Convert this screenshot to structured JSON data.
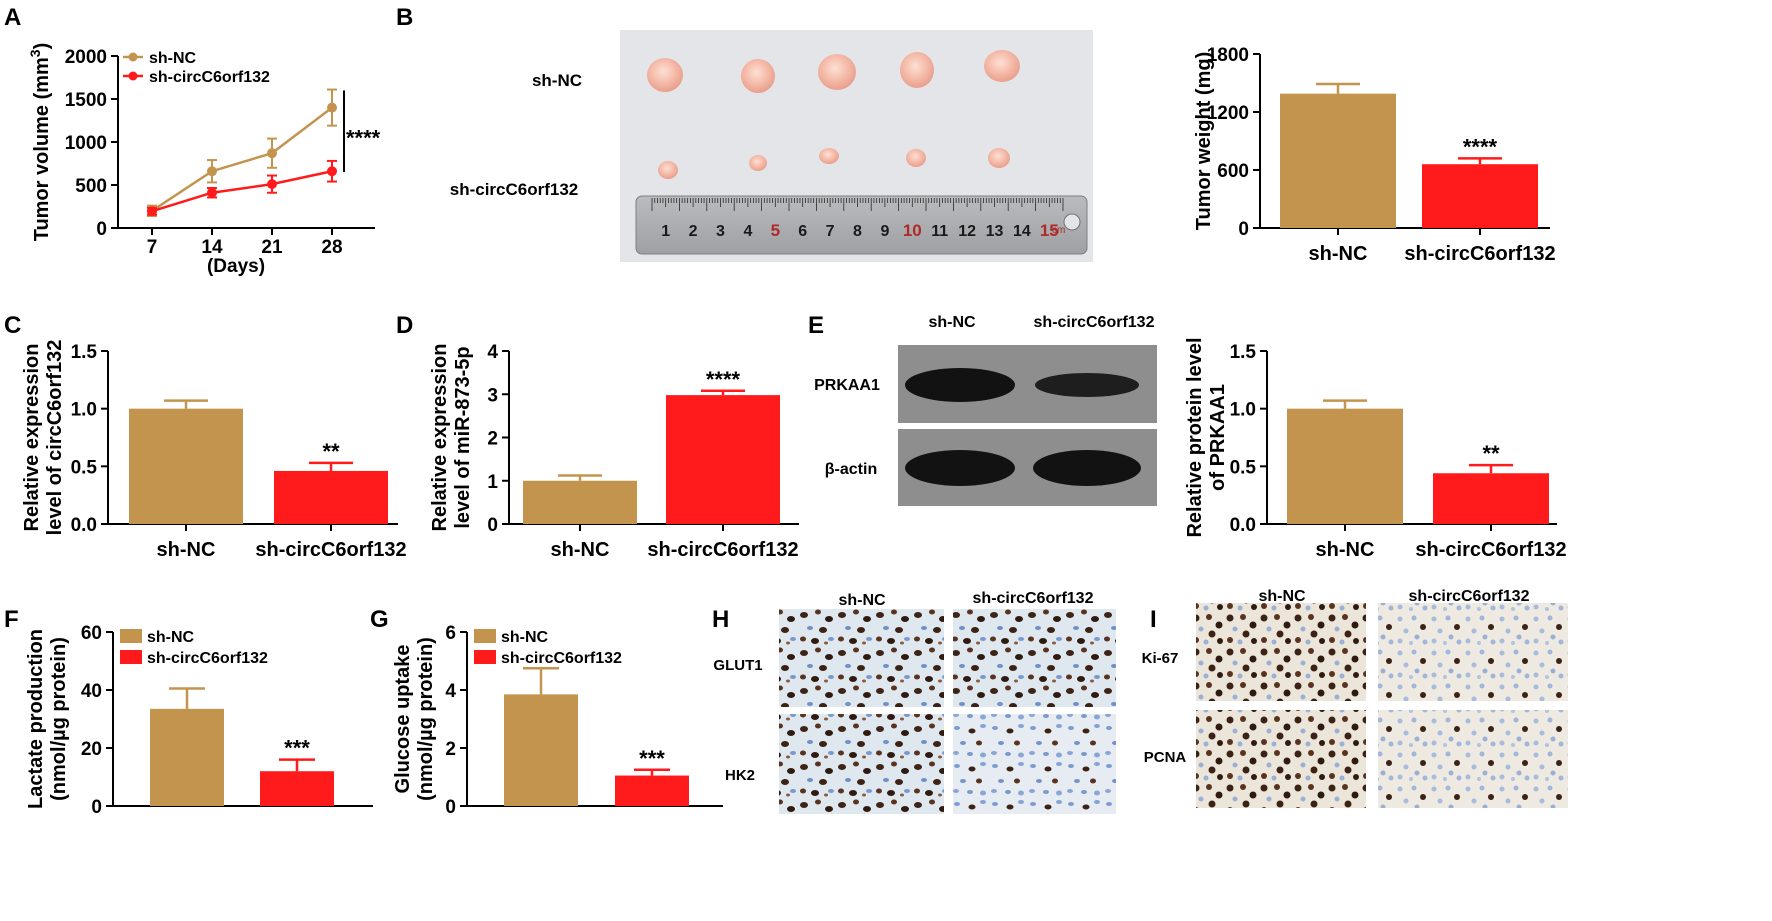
{
  "colors": {
    "nc": "#c3944d",
    "kd": "#ff1b1b",
    "axis": "#000000",
    "blot_bg": "#8e8e8e",
    "band": "#121212"
  },
  "panels": {
    "A": {
      "letter": "A"
    },
    "B": {
      "letter": "B",
      "row_labels": [
        "sh-NC",
        "sh-circC6orf132"
      ],
      "ruler_numbers": [
        "1",
        "2",
        "3",
        "4",
        "5",
        "6",
        "7",
        "8",
        "9",
        "10",
        "11",
        "12",
        "13",
        "14",
        "15"
      ],
      "ruler_unit": "cm"
    },
    "C": {
      "letter": "C"
    },
    "D": {
      "letter": "D"
    },
    "E": {
      "letter": "E",
      "column_labels": [
        "sh-NC",
        "sh-circC6orf132"
      ],
      "row_labels": [
        "PRKAA1",
        "β-actin"
      ]
    },
    "F": {
      "letter": "F"
    },
    "G": {
      "letter": "G"
    },
    "H": {
      "letter": "H",
      "column_labels": [
        "sh-NC",
        "sh-circC6orf132"
      ],
      "row_labels": [
        "GLUT1",
        "HK2"
      ]
    },
    "I": {
      "letter": "I",
      "column_labels": [
        "sh-NC",
        "sh-circC6orf132"
      ],
      "row_labels": [
        "Ki-67",
        "PCNA"
      ]
    }
  },
  "chart_data": [
    {
      "panel": "A",
      "type": "line",
      "xlabel": "(Days)",
      "ylabel": "Tumor volume (mm3)",
      "x": [
        7,
        14,
        21,
        28
      ],
      "ylim": [
        0,
        2000
      ],
      "yticks": [
        "0",
        "500",
        "1000",
        "1500",
        "2000"
      ],
      "series": [
        {
          "name": "sh-NC",
          "values": [
            200,
            660,
            870,
            1400
          ],
          "errors": [
            60,
            130,
            170,
            210
          ]
        },
        {
          "name": "sh-circC6orf132",
          "values": [
            195,
            410,
            510,
            660
          ],
          "errors": [
            40,
            55,
            100,
            120
          ]
        }
      ],
      "annotations": [
        "****"
      ],
      "legend": "top-left"
    },
    {
      "panel": "B",
      "type": "bar",
      "ylabel": "Tumor weight (mg)",
      "categories": [
        "sh-NC",
        "sh-circC6orf132"
      ],
      "values": [
        1390,
        660
      ],
      "errors": [
        100,
        60
      ],
      "ylim": [
        0,
        1800
      ],
      "yticks": [
        "0",
        "600",
        "1200",
        "1800"
      ],
      "annotations": [
        "",
        "****"
      ]
    },
    {
      "panel": "C",
      "type": "bar",
      "ylabel": "Relative expression level of circC6orf132",
      "categories": [
        "sh-NC",
        "sh-circC6orf132"
      ],
      "values": [
        1.0,
        0.46
      ],
      "errors": [
        0.07,
        0.07
      ],
      "ylim": [
        0,
        1.5
      ],
      "yticks": [
        "0.0",
        "0.5",
        "1.0",
        "1.5"
      ],
      "annotations": [
        "",
        "**"
      ]
    },
    {
      "panel": "D",
      "type": "bar",
      "ylabel": "Relative expression level of miR-873-5p",
      "categories": [
        "sh-NC",
        "sh-circC6orf132"
      ],
      "values": [
        1.0,
        2.98
      ],
      "errors": [
        0.12,
        0.1
      ],
      "ylim": [
        0,
        4
      ],
      "yticks": [
        "0",
        "1",
        "2",
        "3",
        "4"
      ],
      "annotations": [
        "",
        "****"
      ]
    },
    {
      "panel": "E",
      "type": "bar",
      "ylabel": "Relative protein level of PRKAA1",
      "categories": [
        "sh-NC",
        "sh-circC6orf132"
      ],
      "values": [
        1.0,
        0.44
      ],
      "errors": [
        0.07,
        0.07
      ],
      "ylim": [
        0,
        1.5
      ],
      "yticks": [
        "0.0",
        "0.5",
        "1.0",
        "1.5"
      ],
      "annotations": [
        "",
        "**"
      ]
    },
    {
      "panel": "F",
      "type": "bar",
      "ylabel": "Lactate production (nmol/µg protein)",
      "categories": [
        "sh-NC",
        "sh-circC6orf132"
      ],
      "series": [
        {
          "name": "sh-NC"
        },
        {
          "name": "sh-circC6orf132"
        }
      ],
      "values": [
        33.5,
        12
      ],
      "errors": [
        7,
        4
      ],
      "ylim": [
        0,
        60
      ],
      "yticks": [
        "0",
        "20",
        "40",
        "60"
      ],
      "annotations": [
        "",
        "***"
      ],
      "legend": "top-left"
    },
    {
      "panel": "G",
      "type": "bar",
      "ylabel": "Glucose uptake (nmol/µg protein)",
      "categories": [
        "sh-NC",
        "sh-circC6orf132"
      ],
      "series": [
        {
          "name": "sh-NC"
        },
        {
          "name": "sh-circC6orf132"
        }
      ],
      "values": [
        3.85,
        1.05
      ],
      "errors": [
        0.9,
        0.2
      ],
      "ylim": [
        0,
        6
      ],
      "yticks": [
        "0",
        "2",
        "4",
        "6"
      ],
      "annotations": [
        "",
        "***"
      ],
      "legend": "top-left"
    }
  ]
}
